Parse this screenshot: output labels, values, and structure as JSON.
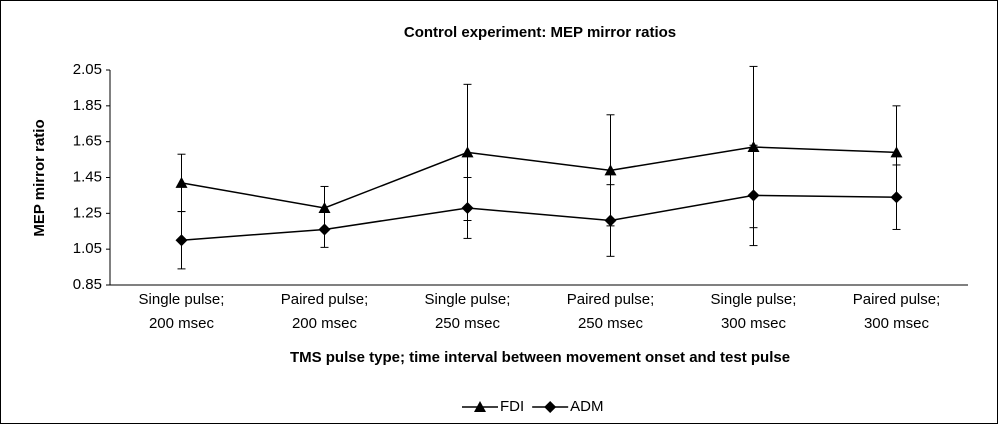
{
  "chart_data": {
    "type": "line",
    "title": "Control experiment: MEP mirror ratios",
    "xlabel": "TMS pulse type; time interval between movement onset and test pulse",
    "ylabel": "MEP mirror ratio",
    "categories": [
      "Single pulse; 200 msec",
      "Paired pulse; 200 msec",
      "Single pulse; 250 msec",
      "Paired pulse; 250 msec",
      "Single pulse; 300 msec",
      "Paired pulse; 300 msec"
    ],
    "series": [
      {
        "name": "FDI",
        "color": "#000000",
        "marker": "triangle",
        "values": [
          1.42,
          1.28,
          1.59,
          1.49,
          1.62,
          1.59
        ],
        "errors": [
          0.16,
          0.12,
          0.38,
          0.31,
          0.45,
          0.26
        ]
      },
      {
        "name": "ADM",
        "color": "#000000",
        "marker": "diamond",
        "values": [
          1.1,
          1.16,
          1.28,
          1.21,
          1.35,
          1.34
        ],
        "errors": [
          0.16,
          0.1,
          0.17,
          0.2,
          0.28,
          0.18
        ]
      }
    ],
    "ylim": [
      0.85,
      2.05
    ],
    "yticks": [
      0.85,
      1.05,
      1.25,
      1.45,
      1.65,
      1.85,
      2.05
    ],
    "legend": "bottom"
  }
}
